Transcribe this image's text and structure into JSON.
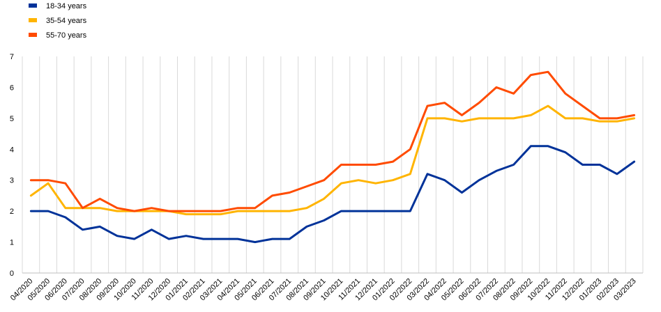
{
  "chart_data": {
    "type": "line",
    "title": "",
    "xlabel": "",
    "ylabel": "",
    "ylim": [
      0,
      7
    ],
    "yticks": [
      0,
      1,
      2,
      3,
      4,
      5,
      6,
      7
    ],
    "grid": "vertical",
    "legend_position": "top-left",
    "categories": [
      "04/2020",
      "05/2020",
      "06/2020",
      "07/2020",
      "08/2020",
      "09/2020",
      "10/2020",
      "11/2020",
      "12/2020",
      "01/2021",
      "02/2021",
      "03/2021",
      "04/2021",
      "05/2021",
      "06/2021",
      "07/2021",
      "08/2021",
      "09/2021",
      "10/2021",
      "11/2021",
      "12/2021",
      "01/2022",
      "02/2022",
      "03/2022",
      "04/2022",
      "05/2022",
      "06/2022",
      "07/2022",
      "08/2022",
      "09/2022",
      "10/2022",
      "11/2022",
      "12/2022",
      "01/2023",
      "02/2023",
      "03/2023"
    ],
    "series": [
      {
        "name": "18-34 years",
        "color": "#003299",
        "values": [
          2.0,
          2.0,
          1.8,
          1.4,
          1.5,
          1.2,
          1.1,
          1.4,
          1.1,
          1.2,
          1.1,
          1.1,
          1.1,
          1.0,
          1.1,
          1.1,
          1.5,
          1.7,
          2.0,
          2.0,
          2.0,
          2.0,
          2.0,
          3.2,
          3.0,
          2.6,
          3.0,
          3.3,
          3.5,
          4.1,
          4.1,
          3.9,
          3.5,
          3.5,
          3.2,
          3.6
        ]
      },
      {
        "name": "35-54 years",
        "color": "#FFB400",
        "values": [
          2.5,
          2.9,
          2.1,
          2.1,
          2.1,
          2.0,
          2.0,
          2.0,
          2.0,
          1.9,
          1.9,
          1.9,
          2.0,
          2.0,
          2.0,
          2.0,
          2.1,
          2.4,
          2.9,
          3.0,
          2.9,
          3.0,
          3.2,
          5.0,
          5.0,
          4.9,
          5.0,
          5.0,
          5.0,
          5.1,
          5.4,
          5.0,
          5.0,
          4.9,
          4.9,
          5.0
        ]
      },
      {
        "name": "55-70 years",
        "color": "#FF4B00",
        "values": [
          3.0,
          3.0,
          2.9,
          2.1,
          2.4,
          2.1,
          2.0,
          2.1,
          2.0,
          2.0,
          2.0,
          2.0,
          2.1,
          2.1,
          2.5,
          2.6,
          2.8,
          3.0,
          3.5,
          3.5,
          3.5,
          3.6,
          4.0,
          5.4,
          5.5,
          5.1,
          5.5,
          6.0,
          5.8,
          6.4,
          6.5,
          5.8,
          5.4,
          5.0,
          5.0,
          5.1
        ]
      }
    ]
  }
}
